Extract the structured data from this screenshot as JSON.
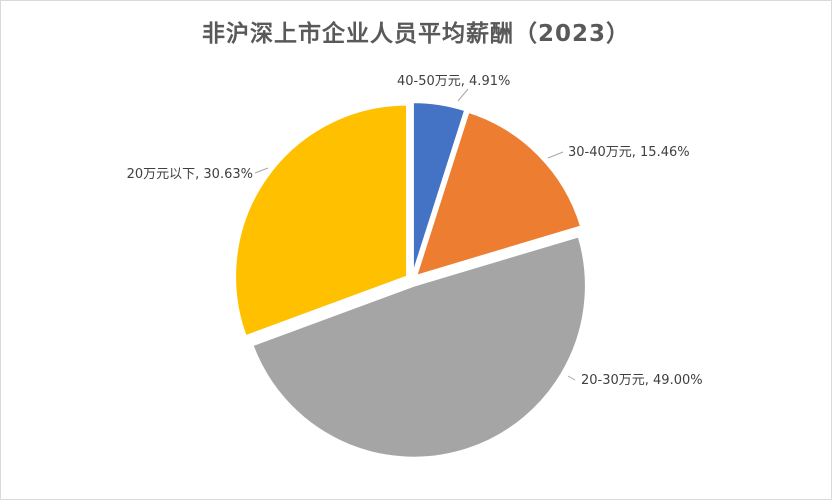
{
  "chart_data": {
    "type": "pie",
    "title": "非沪深上市企业人员平均薪酬（2023）",
    "slices": [
      {
        "label": "40-50万元",
        "value": 4.91,
        "display": "40-50万元, 4.91%",
        "color": "#4472C4"
      },
      {
        "label": "30-40万元",
        "value": 15.46,
        "display": "30-40万元, 15.46%",
        "color": "#ED7D31"
      },
      {
        "label": "20-30万元",
        "value": 49.0,
        "display": "20-30万元, 49.00%",
        "color": "#A5A5A5"
      },
      {
        "label": "20万元以下",
        "value": 30.63,
        "display": "20万元以下, 30.63%",
        "color": "#FFC000"
      }
    ],
    "legend": "none",
    "labels": "outside with leader lines"
  }
}
